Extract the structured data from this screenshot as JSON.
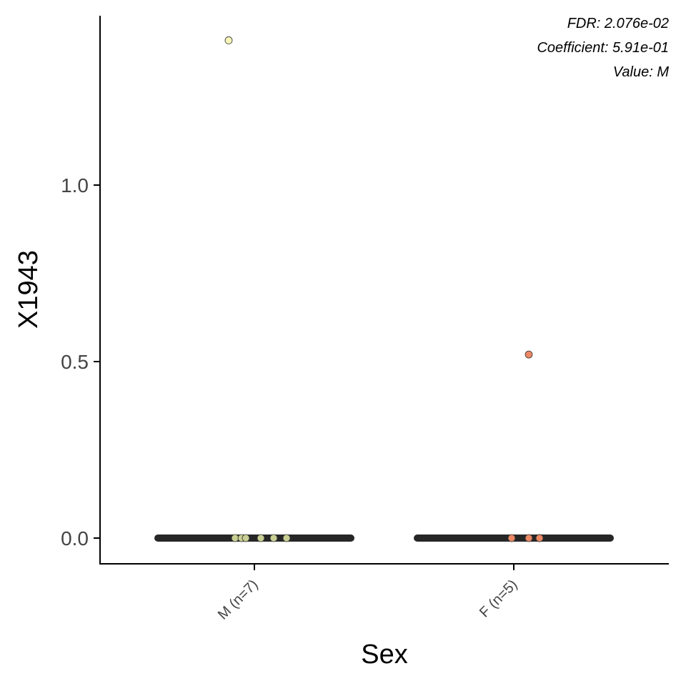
{
  "chart_data": {
    "type": "scatter",
    "title": "",
    "xlabel": "Sex",
    "ylabel": "X1943",
    "categories": [
      "M (n=7)",
      "F (n=5)"
    ],
    "ylim": [
      -0.07,
      1.48
    ],
    "yticks": [
      0.0,
      0.5,
      1.0
    ],
    "ytick_labels": [
      "0.0",
      "0.5",
      "1.0"
    ],
    "grid": false,
    "annotations": [
      "FDR: 2.076e-02",
      "Coefficient: 5.91e-01",
      "Value: M"
    ],
    "series": [
      {
        "category": "M (n=7)",
        "color": "#c9cf92",
        "median": 0.0,
        "points": [
          {
            "x_jitter": -0.12,
            "y": 1.41
          },
          {
            "x_jitter": -0.09,
            "y": 0.0
          },
          {
            "x_jitter": -0.06,
            "y": 0.0
          },
          {
            "x_jitter": -0.04,
            "y": 0.0
          },
          {
            "x_jitter": 0.03,
            "y": 0.0
          },
          {
            "x_jitter": 0.09,
            "y": 0.0
          },
          {
            "x_jitter": 0.15,
            "y": 0.0
          }
        ]
      },
      {
        "category": "F (n=5)",
        "color": "#ec8864",
        "median": 0.0,
        "points": [
          {
            "x_jitter": 0.07,
            "y": 0.52
          },
          {
            "x_jitter": -0.01,
            "y": 0.0
          },
          {
            "x_jitter": 0.07,
            "y": 0.0
          },
          {
            "x_jitter": 0.12,
            "y": 0.0
          },
          {
            "x_jitter": 0.12,
            "y": 0.0
          }
        ]
      }
    ],
    "highlight_point_color": "#f7f6b8"
  }
}
